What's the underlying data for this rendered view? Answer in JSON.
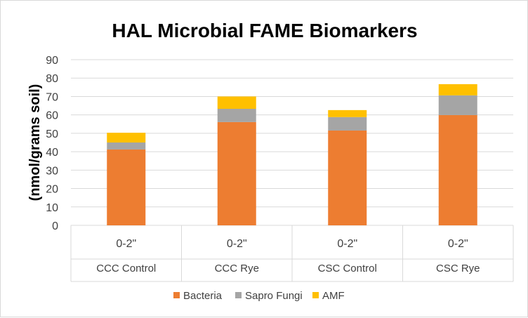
{
  "chart_data": {
    "type": "bar",
    "stacked": true,
    "title": "HAL Microbial FAME Biomarkers",
    "ylabel": "(nmol/grams soil)",
    "xlabel": "",
    "ylim": [
      0,
      90
    ],
    "yticks": [
      0,
      10,
      20,
      30,
      40,
      50,
      60,
      70,
      80,
      90
    ],
    "grid": true,
    "legend_position": "bottom",
    "categories": [
      "CCC Control",
      "CCC Rye",
      "CSC Control",
      "CSC Rye"
    ],
    "subcategories": [
      "0-2\"",
      "0-2\"",
      "0-2\"",
      "0-2\""
    ],
    "series": [
      {
        "name": "Bacteria",
        "color": "#ED7D31",
        "values": [
          41.2,
          56.1,
          51.5,
          59.9
        ]
      },
      {
        "name": "Sapro Fungi",
        "color": "#A5A5A5",
        "values": [
          3.8,
          7.2,
          7.3,
          10.7
        ]
      },
      {
        "name": "AMF",
        "color": "#FFC000",
        "values": [
          5.3,
          6.7,
          3.8,
          6.1
        ]
      }
    ]
  }
}
